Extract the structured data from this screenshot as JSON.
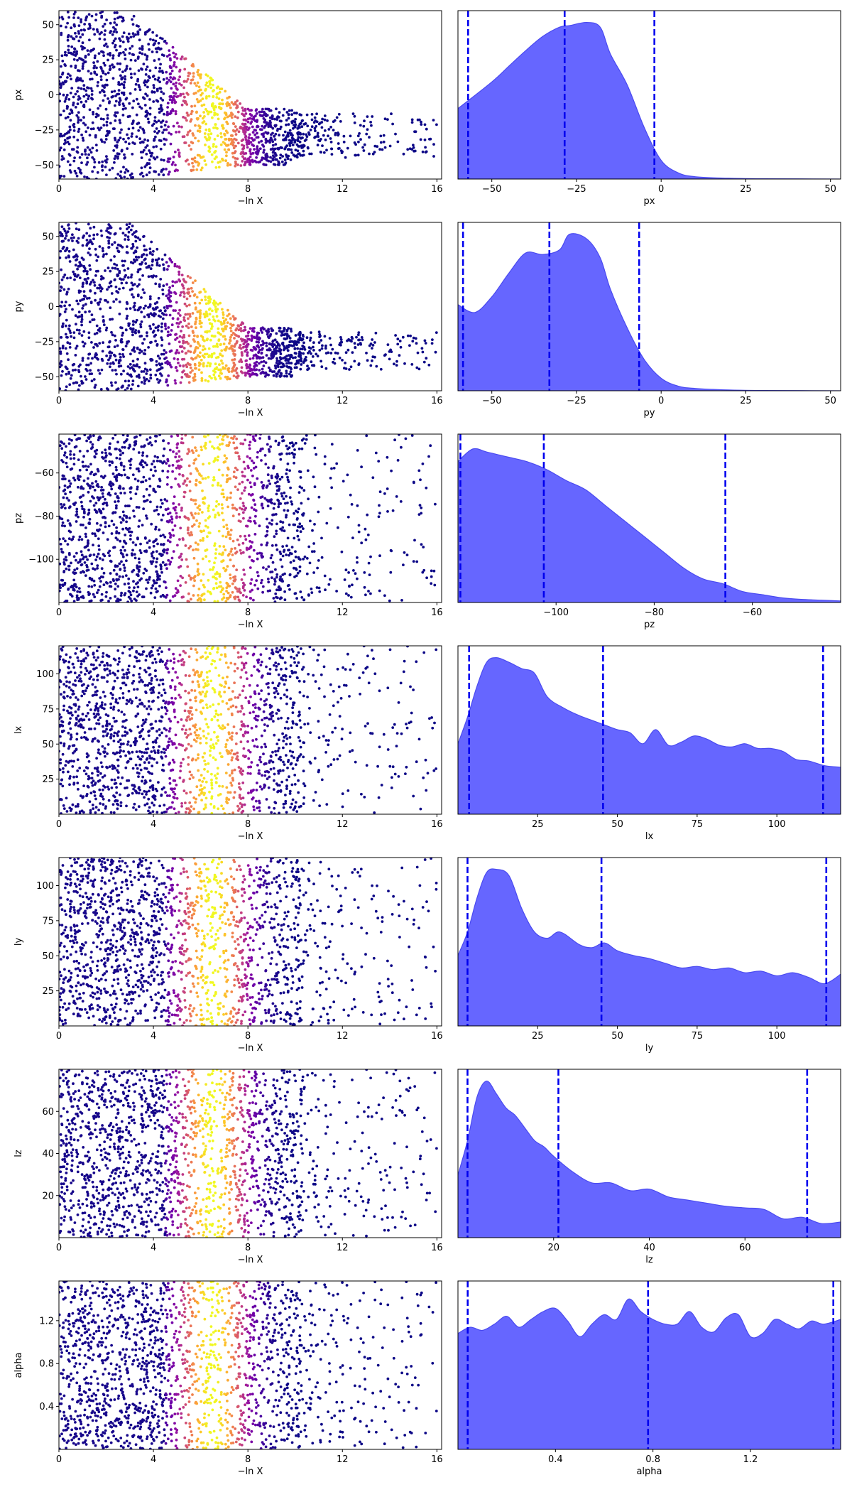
{
  "figure": {
    "background": "#ffffff"
  },
  "style": {
    "scatter_colormap": [
      "#0d0887",
      "#46039f",
      "#7201a8",
      "#9c179e",
      "#bd3786",
      "#d8576b",
      "#ed7953",
      "#fb9f3a",
      "#fdca26",
      "#f0f921"
    ],
    "posterior_fill": "#6666ff",
    "posterior_edge": "#4a4af0",
    "quantile_line": "#0000ee"
  },
  "chart_data": [
    {
      "param": "px",
      "trace": {
        "type": "scatter",
        "xlabel": "−ln X",
        "ylabel": "px",
        "xlim": [
          0,
          16.2
        ],
        "ylim": [
          -60,
          60
        ],
        "xticks": [
          0,
          4,
          8,
          12,
          16
        ],
        "yticks": [
          -50,
          -25,
          0,
          25,
          50
        ],
        "ytick_labels": [
          "−50",
          "−25",
          "0",
          "25",
          "50"
        ],
        "trend": "taper",
        "lo": -60,
        "hi": 60,
        "tail_lo": -50,
        "tail_hi": -10,
        "tail_x": 16
      },
      "posterior": {
        "type": "area",
        "xlabel": "px",
        "xlim": [
          -60,
          53
        ],
        "xticks": [
          -50,
          -25,
          0,
          25,
          50
        ],
        "xtick_labels": [
          "−50",
          "−25",
          "0",
          "25",
          "50"
        ],
        "density_x": [
          -60,
          -50,
          -45,
          -40,
          -35,
          -30,
          -27,
          -22,
          -18,
          -15,
          -10,
          -5,
          0,
          5,
          10,
          20,
          30,
          53
        ],
        "density_y": [
          0.45,
          0.62,
          0.72,
          0.82,
          0.91,
          0.97,
          0.98,
          1.0,
          0.97,
          0.8,
          0.6,
          0.33,
          0.12,
          0.04,
          0.015,
          0.005,
          0.002,
          0.0
        ],
        "quantiles": [
          -57,
          -28.5,
          -2
        ]
      }
    },
    {
      "param": "py",
      "trace": {
        "type": "scatter",
        "xlabel": "−ln X",
        "ylabel": "py",
        "xlim": [
          0,
          16.2
        ],
        "ylim": [
          -60,
          60
        ],
        "xticks": [
          0,
          4,
          8,
          12,
          16
        ],
        "yticks": [
          -50,
          -25,
          0,
          25,
          50
        ],
        "ytick_labels": [
          "−50",
          "−25",
          "0",
          "25",
          "50"
        ],
        "trend": "taper",
        "lo": -60,
        "hi": 60,
        "tail_lo": -50,
        "tail_hi": -15,
        "tail_x": 16
      },
      "posterior": {
        "type": "area",
        "xlabel": "py",
        "xlim": [
          -60,
          53
        ],
        "xticks": [
          -50,
          -25,
          0,
          25,
          50
        ],
        "xtick_labels": [
          "−50",
          "−25",
          "0",
          "25",
          "50"
        ],
        "density_x": [
          -60,
          -55,
          -50,
          -45,
          -40,
          -35,
          -30,
          -27,
          -22,
          -18,
          -15,
          -10,
          -5,
          0,
          5,
          10,
          20,
          30,
          53
        ],
        "density_y": [
          0.55,
          0.5,
          0.6,
          0.75,
          0.88,
          0.87,
          0.9,
          1.0,
          0.97,
          0.85,
          0.65,
          0.4,
          0.2,
          0.08,
          0.03,
          0.015,
          0.005,
          0.002,
          0.0
        ],
        "quantiles": [
          -58.5,
          -33,
          -6.5
        ]
      }
    },
    {
      "param": "pz",
      "trace": {
        "type": "scatter",
        "xlabel": "−ln X",
        "ylabel": "pz",
        "xlim": [
          0,
          16.2
        ],
        "ylim": [
          -120,
          -42
        ],
        "xticks": [
          0,
          4,
          8,
          12,
          16
        ],
        "yticks": [
          -100,
          -80,
          -60
        ],
        "ytick_labels": [
          "−100",
          "−80",
          "−60"
        ],
        "trend": "uniform",
        "lo": -120,
        "hi": -42
      },
      "posterior": {
        "type": "area",
        "xlabel": "pz",
        "xlim": [
          -120,
          -42
        ],
        "xticks": [
          -100,
          -80,
          -60
        ],
        "xtick_labels": [
          "−100",
          "−80",
          "−60"
        ],
        "density_x": [
          -120,
          -117,
          -114,
          -110,
          -106,
          -102,
          -98,
          -94,
          -90,
          -86,
          -82,
          -78,
          -74,
          -70,
          -66,
          -62,
          -58,
          -54,
          -50,
          -46,
          -42
        ],
        "density_y": [
          0.9,
          0.98,
          0.96,
          0.93,
          0.9,
          0.85,
          0.78,
          0.72,
          0.62,
          0.52,
          0.42,
          0.32,
          0.22,
          0.15,
          0.12,
          0.07,
          0.05,
          0.03,
          0.02,
          0.015,
          0.01
        ],
        "quantiles": [
          -119.5,
          -102.5,
          -65.5
        ]
      }
    },
    {
      "param": "lx",
      "trace": {
        "type": "scatter",
        "xlabel": "−ln X",
        "ylabel": "lx",
        "xlim": [
          0,
          16.2
        ],
        "ylim": [
          0,
          120
        ],
        "xticks": [
          0,
          4,
          8,
          12,
          16
        ],
        "yticks": [
          25,
          50,
          75,
          100
        ],
        "ytick_labels": [
          "25",
          "50",
          "75",
          "100"
        ],
        "trend": "uniform",
        "lo": 0,
        "hi": 120
      },
      "posterior": {
        "type": "area",
        "xlabel": "lx",
        "xlim": [
          0,
          120
        ],
        "xticks": [
          25,
          50,
          75,
          100
        ],
        "xtick_labels": [
          "25",
          "50",
          "75",
          "100"
        ],
        "density_x": [
          0,
          3,
          6,
          9,
          12,
          16,
          20,
          24,
          28,
          33,
          38,
          42,
          46,
          50,
          54,
          58,
          62,
          66,
          70,
          74,
          78,
          82,
          86,
          90,
          94,
          98,
          102,
          106,
          110,
          115,
          120
        ],
        "density_y": [
          0.45,
          0.62,
          0.82,
          0.97,
          1.0,
          0.97,
          0.93,
          0.9,
          0.75,
          0.68,
          0.63,
          0.6,
          0.57,
          0.54,
          0.52,
          0.45,
          0.54,
          0.44,
          0.46,
          0.5,
          0.48,
          0.44,
          0.43,
          0.45,
          0.42,
          0.42,
          0.4,
          0.35,
          0.34,
          0.31,
          0.3
        ],
        "quantiles": [
          3.5,
          45.5,
          114.5
        ]
      }
    },
    {
      "param": "ly",
      "trace": {
        "type": "scatter",
        "xlabel": "−ln X",
        "ylabel": "ly",
        "xlim": [
          0,
          16.2
        ],
        "ylim": [
          0,
          120
        ],
        "xticks": [
          0,
          4,
          8,
          12,
          16
        ],
        "yticks": [
          25,
          50,
          75,
          100
        ],
        "ytick_labels": [
          "25",
          "50",
          "75",
          "100"
        ],
        "trend": "uniform",
        "lo": 0,
        "hi": 120
      },
      "posterior": {
        "type": "area",
        "xlabel": "ly",
        "xlim": [
          0,
          120
        ],
        "xticks": [
          25,
          50,
          75,
          100
        ],
        "xtick_labels": [
          "25",
          "50",
          "75",
          "100"
        ],
        "density_x": [
          0,
          3,
          6,
          9,
          12,
          16,
          20,
          24,
          28,
          32,
          38,
          42,
          46,
          50,
          55,
          60,
          65,
          70,
          75,
          80,
          85,
          90,
          95,
          100,
          105,
          110,
          115,
          120
        ],
        "density_y": [
          0.45,
          0.6,
          0.82,
          0.98,
          1.0,
          0.96,
          0.75,
          0.6,
          0.56,
          0.6,
          0.52,
          0.5,
          0.53,
          0.48,
          0.45,
          0.43,
          0.4,
          0.37,
          0.38,
          0.36,
          0.37,
          0.34,
          0.35,
          0.32,
          0.34,
          0.31,
          0.27,
          0.33
        ],
        "quantiles": [
          3,
          45,
          115.5
        ]
      }
    },
    {
      "param": "lz",
      "trace": {
        "type": "scatter",
        "xlabel": "−ln X",
        "ylabel": "lz",
        "xlim": [
          0,
          16.2
        ],
        "ylim": [
          0,
          80
        ],
        "xticks": [
          0,
          4,
          8,
          12,
          16
        ],
        "yticks": [
          20,
          40,
          60
        ],
        "ytick_labels": [
          "20",
          "40",
          "60"
        ],
        "trend": "uniform",
        "lo": 0,
        "hi": 80
      },
      "posterior": {
        "type": "area",
        "xlabel": "lz",
        "xlim": [
          0,
          80
        ],
        "xticks": [
          20,
          40,
          60
        ],
        "xtick_labels": [
          "20",
          "40",
          "60"
        ],
        "density_x": [
          0,
          2,
          4,
          6,
          8,
          10,
          12,
          14,
          16,
          18,
          20,
          24,
          28,
          32,
          36,
          40,
          44,
          48,
          52,
          56,
          60,
          64,
          68,
          72,
          76,
          80
        ],
        "density_y": [
          0.4,
          0.62,
          0.9,
          1.0,
          0.92,
          0.83,
          0.78,
          0.7,
          0.62,
          0.58,
          0.52,
          0.42,
          0.35,
          0.35,
          0.3,
          0.31,
          0.26,
          0.24,
          0.22,
          0.2,
          0.19,
          0.18,
          0.12,
          0.13,
          0.09,
          0.1
        ],
        "quantiles": [
          2,
          21,
          73
        ]
      }
    },
    {
      "param": "alpha",
      "trace": {
        "type": "scatter",
        "xlabel": "−ln X",
        "ylabel": "alpha",
        "xlim": [
          0,
          16.2
        ],
        "ylim": [
          0,
          1.57
        ],
        "xticks": [
          0,
          4,
          8,
          12,
          16
        ],
        "yticks": [
          0.4,
          0.8,
          1.2
        ],
        "ytick_labels": [
          "0.4",
          "0.8",
          "1.2"
        ],
        "trend": "uniform",
        "lo": 0,
        "hi": 1.57
      },
      "posterior": {
        "type": "area",
        "xlabel": "alpha",
        "xlim": [
          0,
          1.57
        ],
        "xticks": [
          0.4,
          0.8,
          1.2
        ],
        "xtick_labels": [
          "0.4",
          "0.8",
          "1.2"
        ],
        "density_x": [
          0,
          0.05,
          0.1,
          0.15,
          0.2,
          0.25,
          0.3,
          0.35,
          0.4,
          0.45,
          0.5,
          0.55,
          0.6,
          0.65,
          0.7,
          0.75,
          0.8,
          0.85,
          0.9,
          0.95,
          1.0,
          1.05,
          1.1,
          1.15,
          1.2,
          1.25,
          1.3,
          1.35,
          1.4,
          1.45,
          1.5,
          1.57
        ],
        "density_y": [
          0.74,
          0.78,
          0.76,
          0.8,
          0.85,
          0.78,
          0.83,
          0.88,
          0.9,
          0.82,
          0.72,
          0.8,
          0.86,
          0.83,
          0.96,
          0.88,
          0.83,
          0.8,
          0.8,
          0.88,
          0.78,
          0.75,
          0.84,
          0.86,
          0.72,
          0.74,
          0.83,
          0.8,
          0.77,
          0.82,
          0.8,
          0.83
        ],
        "quantiles": [
          0.04,
          0.78,
          1.54
        ]
      }
    }
  ]
}
